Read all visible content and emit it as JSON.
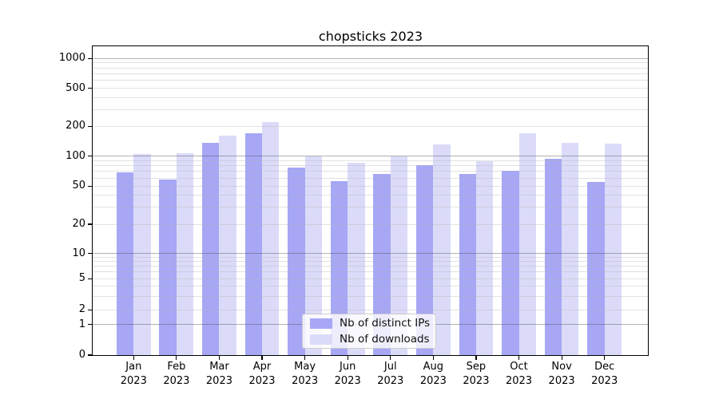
{
  "title": "chopsticks 2023",
  "chart_data": {
    "type": "bar",
    "title": "chopsticks 2023",
    "categories": [
      "Jan 2023",
      "Feb 2023",
      "Mar 2023",
      "Apr 2023",
      "May 2023",
      "Jun 2023",
      "Jul 2023",
      "Aug 2023",
      "Sep 2023",
      "Oct 2023",
      "Nov 2023",
      "Dec 2023"
    ],
    "x_tick_line1": [
      "Jan",
      "Feb",
      "Mar",
      "Apr",
      "May",
      "Jun",
      "Jul",
      "Aug",
      "Sep",
      "Oct",
      "Nov",
      "Dec"
    ],
    "x_tick_line2": "2023",
    "series": [
      {
        "name": "Nb of distinct IPs",
        "color": "#a7a7f6",
        "values": [
          69,
          58,
          136,
          171,
          77,
          56,
          66,
          81,
          66,
          71,
          93,
          55
        ]
      },
      {
        "name": "Nb of downloads",
        "color": "#dbdbf9",
        "values": [
          104,
          107,
          161,
          223,
          99,
          86,
          99,
          130,
          88,
          171,
          136,
          134
        ]
      }
    ],
    "y_axis": {
      "scale": "log above 1, linear between 0 and 1",
      "tick_values": [
        0,
        1,
        2,
        5,
        10,
        20,
        50,
        100,
        200,
        500,
        1000
      ],
      "range": [
        0,
        1400
      ]
    },
    "grid": {
      "horizontal": true,
      "major_at": [
        1,
        10,
        100,
        1000
      ],
      "minor": true
    },
    "legend": {
      "position": "lower-center"
    }
  }
}
